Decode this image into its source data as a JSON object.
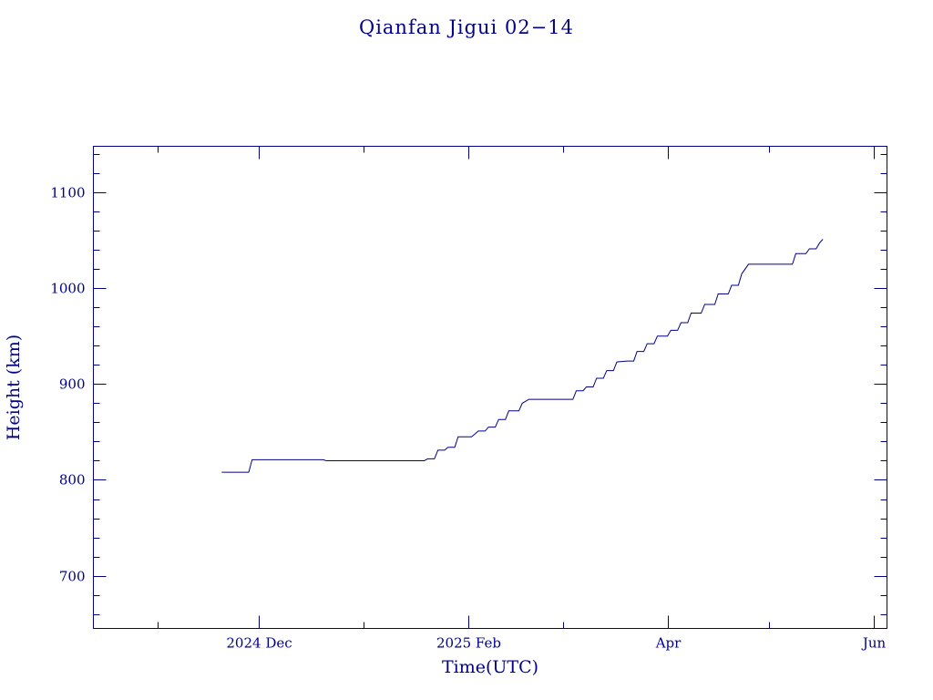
{
  "chart_data": {
    "type": "line",
    "title": "Qianfan Jigui 02−14",
    "xlabel": "Time(UTC)",
    "ylabel": "Height (km)",
    "xlim": [
      "2024-10-13",
      "2025-06-05"
    ],
    "ylim": [
      645,
      1148
    ],
    "x_ticks": [
      {
        "date": "2024-12-01",
        "label": "2024 Dec"
      },
      {
        "date": "2025-02-01",
        "label": "2025 Feb"
      },
      {
        "date": "2025-04-01",
        "label": "Apr"
      },
      {
        "date": "2025-06-01",
        "label": "Jun"
      }
    ],
    "x_minor_ticks": [
      "2024-11-01",
      "2025-01-01",
      "2025-03-01",
      "2025-05-01"
    ],
    "y_ticks": [
      700,
      800,
      900,
      1000,
      1100
    ],
    "y_minor_step": 20,
    "series": [
      {
        "style": "step",
        "points": [
          [
            "2024-11-20",
            808
          ],
          [
            "2024-11-28",
            808
          ],
          [
            "2024-11-29",
            821
          ],
          [
            "2024-12-20",
            821
          ],
          [
            "2024-12-21",
            820
          ],
          [
            "2025-01-17",
            820
          ],
          [
            "2025-01-20",
            822
          ],
          [
            "2025-01-23",
            831
          ],
          [
            "2025-01-26",
            834
          ],
          [
            "2025-01-29",
            845
          ],
          [
            "2025-02-02",
            845
          ],
          [
            "2025-02-04",
            851
          ],
          [
            "2025-02-07",
            855
          ],
          [
            "2025-02-10",
            863
          ],
          [
            "2025-02-13",
            872
          ],
          [
            "2025-02-17",
            880
          ],
          [
            "2025-02-19",
            884
          ],
          [
            "2025-03-02",
            884
          ],
          [
            "2025-03-05",
            893
          ],
          [
            "2025-03-08",
            897
          ],
          [
            "2025-03-11",
            906
          ],
          [
            "2025-03-14",
            914
          ],
          [
            "2025-03-17",
            923
          ],
          [
            "2025-03-20",
            924
          ],
          [
            "2025-03-23",
            934
          ],
          [
            "2025-03-26",
            942
          ],
          [
            "2025-03-29",
            950
          ],
          [
            "2025-04-02",
            956
          ],
          [
            "2025-04-05",
            964
          ],
          [
            "2025-04-08",
            974
          ],
          [
            "2025-04-12",
            983
          ],
          [
            "2025-04-16",
            994
          ],
          [
            "2025-04-20",
            1003
          ],
          [
            "2025-04-23",
            1015
          ],
          [
            "2025-04-25",
            1025
          ],
          [
            "2025-05-06",
            1025
          ],
          [
            "2025-05-09",
            1036
          ],
          [
            "2025-05-13",
            1041
          ],
          [
            "2025-05-16",
            1047
          ],
          [
            "2025-05-17",
            1051
          ]
        ]
      }
    ],
    "grid": false,
    "colors": {
      "ink": "#00008b",
      "background": "#ffffff"
    }
  }
}
